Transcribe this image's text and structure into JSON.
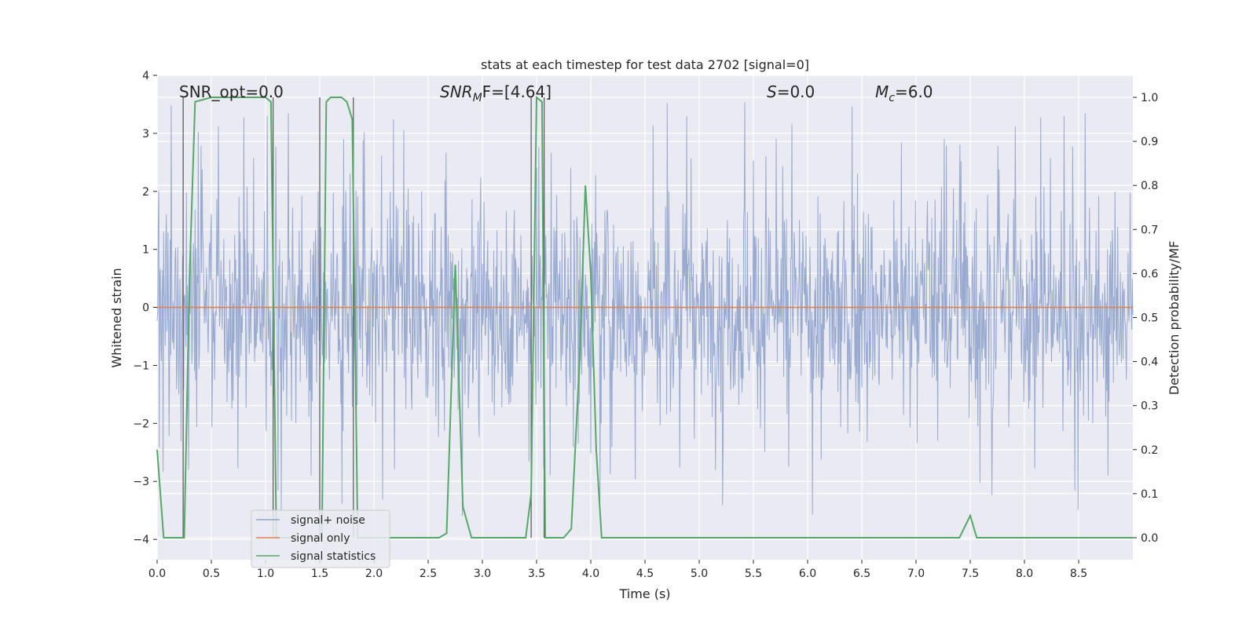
{
  "chart_data": {
    "type": "line",
    "title": "stats at each timestep for test data 2702 [signal=0]",
    "xlabel": "Time (s)",
    "ylabel_left": "Whitened strain",
    "ylabel_right": "Detection probability/MF",
    "xlim": [
      0.0,
      9.0
    ],
    "ylim_left": [
      -4.35,
      4.0
    ],
    "ylim_right": [
      -0.05,
      1.05
    ],
    "x_ticks": [
      "0.0",
      "0.5",
      "1.0",
      "1.5",
      "2.0",
      "2.5",
      "3.0",
      "3.5",
      "4.0",
      "4.5",
      "5.0",
      "5.5",
      "6.0",
      "6.5",
      "7.0",
      "7.5",
      "8.0",
      "8.5"
    ],
    "y_left_ticks": [
      "−4",
      "−3",
      "−2",
      "−1",
      "0",
      "1",
      "2",
      "3",
      "4"
    ],
    "y_right_ticks": [
      "0.0",
      "0.1",
      "0.2",
      "0.3",
      "0.4",
      "0.5",
      "0.6",
      "0.7",
      "0.8",
      "0.9",
      "1.0"
    ],
    "annotations": {
      "snr_opt": "SNR_opt=0.0",
      "snr_mf_main": "SNR",
      "snr_mf_sub": "M",
      "snr_mf_rest": "F=[4.64]",
      "s_main": "S",
      "s_rest": "=0.0",
      "mc_main": "M",
      "mc_sub": "c",
      "mc_rest": "=6.0"
    },
    "legend": {
      "position": "lower-left",
      "entries": [
        {
          "label": "signal+ noise",
          "color": "#8fa3cc"
        },
        {
          "label": "signal only",
          "color": "#dd8452"
        },
        {
          "label": "signal statistics",
          "color": "#55a868"
        }
      ]
    },
    "series": [
      {
        "name": "signal+ noise",
        "axis": "left",
        "color": "#8fa3cc",
        "kind": "noise",
        "amplitude_core": 1.6,
        "amplitude_peak": 3.6
      },
      {
        "name": "signal only",
        "axis": "left",
        "color": "#dd8452",
        "x": [
          0.0,
          9.0
        ],
        "y": [
          0.0,
          0.0
        ]
      },
      {
        "name": "signal statistics",
        "axis": "right",
        "color": "#55a868",
        "x": [
          0.0,
          0.06,
          0.25,
          0.3,
          0.35,
          0.5,
          1.0,
          1.05,
          1.1,
          1.12,
          1.52,
          1.56,
          1.6,
          1.7,
          1.75,
          1.8,
          1.85,
          1.9,
          2.0,
          2.6,
          2.67,
          2.75,
          2.82,
          2.9,
          3.0,
          3.4,
          3.45,
          3.5,
          3.55,
          3.58,
          3.63,
          3.7,
          3.75,
          3.82,
          3.9,
          3.95,
          4.0,
          4.05,
          4.1,
          7.4,
          7.5,
          7.56,
          7.6,
          9.0
        ],
        "y": [
          0.2,
          0.0,
          0.0,
          0.6,
          0.99,
          1.0,
          1.0,
          0.99,
          0.0,
          0.0,
          0.0,
          0.99,
          1.0,
          1.0,
          0.99,
          0.95,
          0.0,
          0.0,
          0.0,
          0.0,
          0.01,
          0.62,
          0.07,
          0.0,
          0.0,
          0.0,
          0.1,
          1.0,
          0.99,
          0.0,
          0.0,
          0.0,
          0.0,
          0.02,
          0.42,
          0.8,
          0.6,
          0.2,
          0.0,
          0.0,
          0.05,
          0.0,
          0.0,
          0.0
        ]
      }
    ],
    "vertical_markers_x": [
      0.24,
      1.07,
      1.5,
      1.81,
      3.45,
      3.57
    ]
  }
}
